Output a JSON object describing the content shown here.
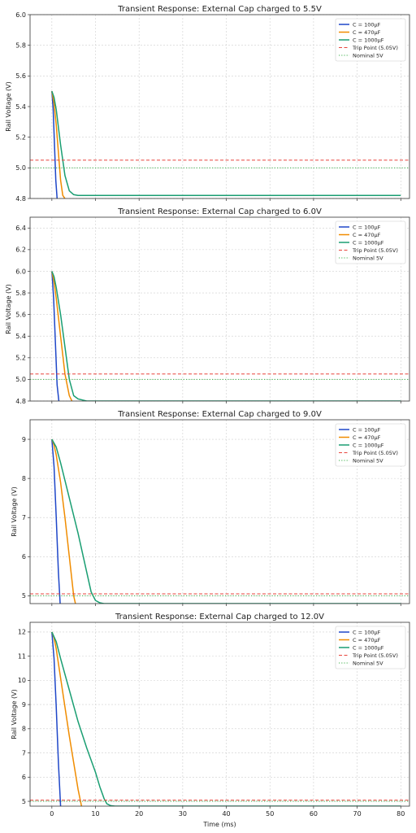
{
  "figure": {
    "x_axis_label": "Time (ms)"
  },
  "colors": {
    "c100": "#1f47c8",
    "c470": "#f08c00",
    "c1000": "#1a9e72",
    "trip": "#e8453c",
    "nominal": "#3cb04a"
  },
  "legend_labels": [
    "C = 100μF",
    "C = 470μF",
    "C = 1000μF",
    "Trip Point (5.05V)",
    "Nominal 5V"
  ],
  "chart_data": [
    {
      "type": "line",
      "title": "Transient Response: External Cap charged to 5.5V",
      "xlabel": "",
      "ylabel": "Rail Voltage (V)",
      "xlim": [
        -5,
        82
      ],
      "ylim": [
        4.8,
        6.0
      ],
      "x_ticks": [
        0,
        10,
        20,
        30,
        40,
        50,
        60,
        70,
        80
      ],
      "x_tick_labels_shown": false,
      "y_ticks": [
        4.8,
        5.0,
        5.2,
        5.4,
        5.6,
        5.8,
        6.0
      ],
      "y_tick_labels": [
        "4.8",
        "5.0",
        "5.2",
        "5.4",
        "5.6",
        "5.8",
        "6.0"
      ],
      "grid": true,
      "legend_position": "top-right",
      "series": [
        {
          "name": "C = 100μF",
          "x": [
            0,
            0.3,
            0.6,
            0.9,
            1.2
          ],
          "y": [
            5.5,
            5.38,
            5.15,
            4.92,
            4.8
          ]
        },
        {
          "name": "C = 470μF",
          "x": [
            0,
            0.5,
            1.0,
            1.5,
            2.0,
            2.5,
            3.0
          ],
          "y": [
            5.5,
            5.42,
            5.28,
            5.1,
            4.92,
            4.82,
            4.8
          ]
        },
        {
          "name": "C = 1000μF",
          "x": [
            0,
            0.5,
            1.0,
            2.0,
            3.0,
            4.0,
            5.0,
            6.0,
            80
          ],
          "y": [
            5.5,
            5.46,
            5.38,
            5.15,
            4.95,
            4.85,
            4.825,
            4.82,
            4.82
          ]
        },
        {
          "name": "Trip Point (5.05V)",
          "x": [
            -5,
            82
          ],
          "y": [
            5.05,
            5.05
          ]
        },
        {
          "name": "Nominal 5V",
          "x": [
            -5,
            82
          ],
          "y": [
            5.0,
            5.0
          ]
        }
      ]
    },
    {
      "type": "line",
      "title": "Transient Response: External Cap charged to 6.0V",
      "xlabel": "",
      "ylabel": "Rail Voltage (V)",
      "xlim": [
        -5,
        82
      ],
      "ylim": [
        4.8,
        6.5
      ],
      "x_ticks": [
        0,
        10,
        20,
        30,
        40,
        50,
        60,
        70,
        80
      ],
      "x_tick_labels_shown": false,
      "y_ticks": [
        4.8,
        5.0,
        5.2,
        5.4,
        5.6,
        5.8,
        6.0,
        6.2,
        6.4
      ],
      "y_tick_labels": [
        "4.8",
        "5.0",
        "5.2",
        "5.4",
        "5.6",
        "5.8",
        "6.0",
        "6.2",
        "6.4"
      ],
      "grid": true,
      "legend_position": "top-right",
      "series": [
        {
          "name": "C = 100μF",
          "x": [
            0,
            0.4,
            0.8,
            1.2,
            1.6
          ],
          "y": [
            6.0,
            5.75,
            5.35,
            4.95,
            4.8
          ]
        },
        {
          "name": "C = 470μF",
          "x": [
            0,
            0.5,
            1.0,
            2.0,
            3.0,
            4.0,
            4.6
          ],
          "y": [
            6.0,
            5.9,
            5.75,
            5.4,
            5.05,
            4.85,
            4.8
          ]
        },
        {
          "name": "C = 1000μF",
          "x": [
            0,
            0.5,
            1.0,
            2.0,
            3.0,
            4.0,
            5.0,
            6.0,
            7.0,
            8.0,
            80
          ],
          "y": [
            6.0,
            5.95,
            5.85,
            5.6,
            5.3,
            5.0,
            4.85,
            4.82,
            4.81,
            4.8,
            4.8
          ]
        },
        {
          "name": "Trip Point (5.05V)",
          "x": [
            -5,
            82
          ],
          "y": [
            5.05,
            5.05
          ]
        },
        {
          "name": "Nominal 5V",
          "x": [
            -5,
            82
          ],
          "y": [
            5.0,
            5.0
          ]
        }
      ]
    },
    {
      "type": "line",
      "title": "Transient Response: External Cap charged to 9.0V",
      "xlabel": "",
      "ylabel": "Rail Voltage (V)",
      "xlim": [
        -5,
        82
      ],
      "ylim": [
        4.8,
        9.5
      ],
      "x_ticks": [
        0,
        10,
        20,
        30,
        40,
        50,
        60,
        70,
        80
      ],
      "x_tick_labels_shown": false,
      "y_ticks": [
        5,
        6,
        7,
        8,
        9
      ],
      "y_tick_labels": [
        "5",
        "6",
        "7",
        "8",
        "9"
      ],
      "grid": true,
      "legend_position": "top-right",
      "series": [
        {
          "name": "C = 100μF",
          "x": [
            0,
            0.5,
            1.0,
            1.5,
            1.9
          ],
          "y": [
            9.0,
            8.3,
            7.0,
            5.6,
            4.8
          ]
        },
        {
          "name": "C = 470μF",
          "x": [
            0,
            0.5,
            1.0,
            2.0,
            3.0,
            4.0,
            5.0,
            5.4
          ],
          "y": [
            9.0,
            8.85,
            8.6,
            7.9,
            7.0,
            6.0,
            5.0,
            4.8
          ]
        },
        {
          "name": "C = 1000μF",
          "x": [
            0,
            1.0,
            2.0,
            4.0,
            6.0,
            8.0,
            9.0,
            10.0,
            11.0,
            12.0,
            80
          ],
          "y": [
            9.0,
            8.8,
            8.4,
            7.5,
            6.6,
            5.6,
            5.1,
            4.88,
            4.82,
            4.8,
            4.8
          ]
        },
        {
          "name": "Trip Point (5.05V)",
          "x": [
            -5,
            82
          ],
          "y": [
            5.05,
            5.05
          ]
        },
        {
          "name": "Nominal 5V",
          "x": [
            -5,
            82
          ],
          "y": [
            5.0,
            5.0
          ]
        }
      ]
    },
    {
      "type": "line",
      "title": "Transient Response: External Cap charged to 12.0V",
      "xlabel": "Time (ms)",
      "ylabel": "Rail Voltage (V)",
      "xlim": [
        -5,
        82
      ],
      "ylim": [
        4.8,
        12.4
      ],
      "x_ticks": [
        0,
        10,
        20,
        30,
        40,
        50,
        60,
        70,
        80
      ],
      "x_tick_labels_shown": true,
      "x_tick_labels": [
        "0",
        "10",
        "20",
        "30",
        "40",
        "50",
        "60",
        "70",
        "80"
      ],
      "y_ticks": [
        5,
        6,
        7,
        8,
        9,
        10,
        11,
        12
      ],
      "y_tick_labels": [
        "5",
        "6",
        "7",
        "8",
        "9",
        "10",
        "11",
        "12"
      ],
      "grid": true,
      "legend_position": "top-right",
      "series": [
        {
          "name": "C = 100μF",
          "x": [
            0,
            0.5,
            1.0,
            1.5,
            2.0
          ],
          "y": [
            12.0,
            10.9,
            8.9,
            6.6,
            4.8
          ]
        },
        {
          "name": "C = 470μF",
          "x": [
            0,
            0.5,
            1.0,
            2.0,
            3.0,
            4.0,
            5.0,
            6.0,
            6.8
          ],
          "y": [
            12.0,
            11.75,
            11.3,
            10.1,
            8.9,
            7.7,
            6.6,
            5.5,
            4.8
          ]
        },
        {
          "name": "C = 1000μF",
          "x": [
            0,
            1.0,
            2.0,
            4.0,
            6.0,
            8.0,
            10.0,
            11.0,
            12.0,
            12.6,
            13.5,
            14.5,
            80
          ],
          "y": [
            12.0,
            11.6,
            10.9,
            9.6,
            8.3,
            7.2,
            6.2,
            5.6,
            5.1,
            4.9,
            4.82,
            4.8,
            4.8
          ]
        },
        {
          "name": "Trip Point (5.05V)",
          "x": [
            -5,
            82
          ],
          "y": [
            5.05,
            5.05
          ]
        },
        {
          "name": "Nominal 5V",
          "x": [
            -5,
            82
          ],
          "y": [
            5.0,
            5.0
          ]
        }
      ]
    }
  ]
}
